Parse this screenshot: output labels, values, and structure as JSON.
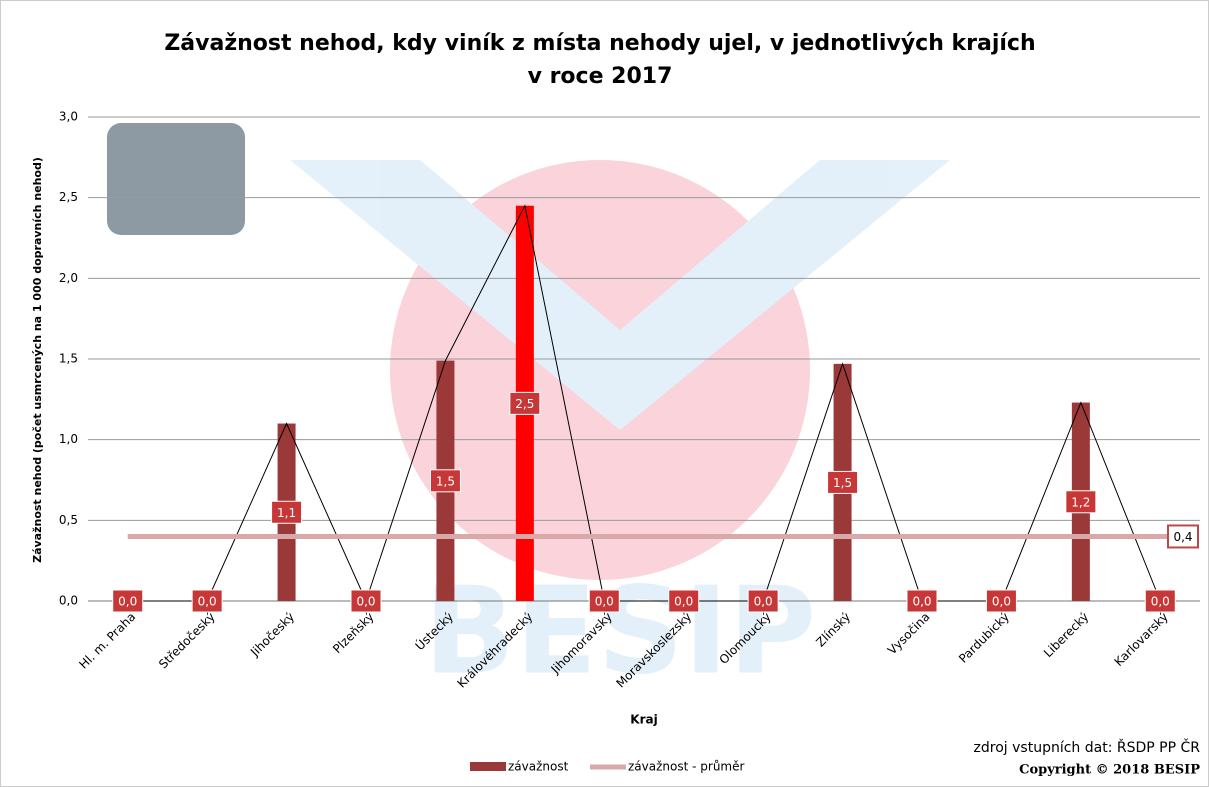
{
  "chart_data": {
    "type": "bar",
    "title": [
      "Závažnost nehod, kdy viník z místa nehody ujel, v jednotlivých krajích",
      "v roce 2017"
    ],
    "y_label": "Závažnost nehod (počet usmrcených na 1 000 dopravních nehod)",
    "x_label": "Kraj",
    "source": "zdroj vstupních dat: ŘSDP PP ČR",
    "copyright": "Copyright © 2018 BESIP",
    "categories": [
      "Hl. m. Praha",
      "Středočeský",
      "Jihočeský",
      "Plzeňský",
      "Ústecký",
      "Královéhradecký",
      "Jihomoravský",
      "Moravskoslezský",
      "Olomoucký",
      "Zlínský",
      "Vysočina",
      "Pardubický",
      "Liberecký",
      "Karlovarský"
    ],
    "series": [
      {
        "name": "závažnost",
        "color": "#9b3838",
        "colors": [
          "#9b3838",
          "#9b3838",
          "#9b3838",
          "#9b3838",
          "#9b3838",
          "#ff0000",
          "#9b3838",
          "#9b3838",
          "#9b3838",
          "#9b3838",
          "#9b3838",
          "#9b3838",
          "#9b3838",
          "#9b3838"
        ],
        "values": [
          0,
          0,
          1.1,
          0,
          1.49,
          2.45,
          0,
          0,
          0,
          1.47,
          0,
          0,
          1.23,
          0
        ],
        "value_labels": [
          "0,0",
          "0,0",
          "1,1",
          "0,0",
          "1,5",
          "2,5",
          "0,0",
          "0,0",
          "0,0",
          "1,5",
          "0,0",
          "0,0",
          "1,2",
          "0,0"
        ]
      },
      {
        "name": "závažnost - průměr",
        "type": "line",
        "color": "#d9a8a8",
        "value": 0.4,
        "value_label": "0,4"
      }
    ],
    "ylim": [
      0,
      3
    ],
    "yticks": [
      {
        "value": 0,
        "label": "0,0"
      },
      {
        "value": 0.5,
        "label": "0,5"
      },
      {
        "value": 1,
        "label": "1,0"
      },
      {
        "value": 1.5,
        "label": "1,5"
      },
      {
        "value": 2,
        "label": "2,0"
      },
      {
        "value": 2.5,
        "label": "2,5"
      },
      {
        "value": 3,
        "label": "3,0"
      }
    ],
    "grid": true
  }
}
